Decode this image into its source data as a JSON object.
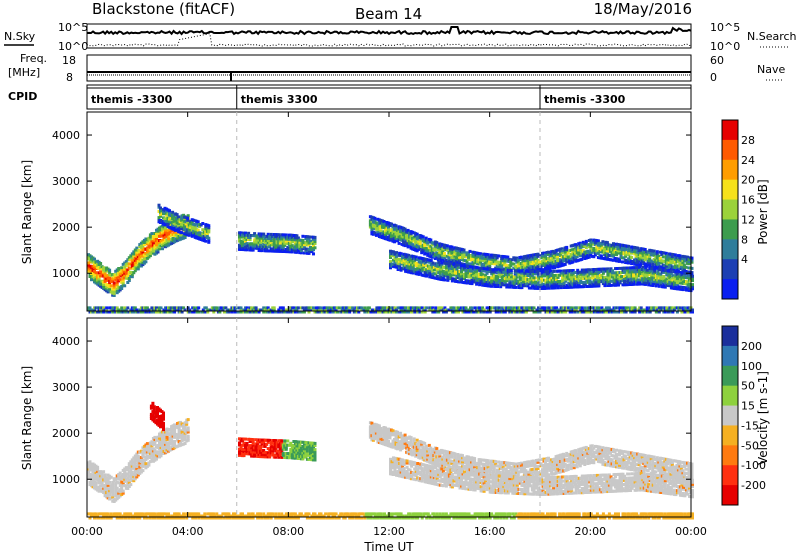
{
  "header": {
    "station": "Blackstone (fitACF)",
    "beam": "Beam 14",
    "date": "18/May/2016"
  },
  "sky_panel": {
    "left_label": "N.Sky",
    "right_label": "N.Search",
    "left_ticks": [
      "10^5",
      "10^0"
    ],
    "right_ticks": [
      "10^5",
      "10^0"
    ]
  },
  "freq_panel": {
    "left_label_line1": "Freq.",
    "left_label_line2": "[MHz]",
    "left_ticks": [
      "18",
      "8"
    ],
    "right_label": "Nave",
    "right_ticks": [
      "60",
      "0"
    ]
  },
  "cpid_panel": {
    "label": "CPID",
    "segments": [
      {
        "name": "themis -3300",
        "start_hour": 0.0
      },
      {
        "name": "themis 3300",
        "start_hour": 5.95
      },
      {
        "name": "themis -3300",
        "start_hour": 18.0
      }
    ]
  },
  "time_axis": {
    "xlabel": "Time UT",
    "tick_labels": [
      "00:00",
      "04:00",
      "08:00",
      "12:00",
      "16:00",
      "20:00",
      "00:00"
    ],
    "tick_hours": [
      0,
      4,
      8,
      12,
      16,
      20,
      24
    ],
    "range_hours": [
      0,
      24
    ]
  },
  "chart_data": [
    {
      "type": "heatmap",
      "name": "power",
      "ylabel": "Slant Range [km]",
      "ylim": [
        180,
        4500
      ],
      "yticks": [
        1000,
        2000,
        3000,
        4000
      ],
      "xlim_hours": [
        0,
        24
      ],
      "colorbar": {
        "label": "Power [dB]",
        "tick_labels": [
          "28",
          "24",
          "20",
          "16",
          "12",
          "8",
          "4"
        ],
        "colors": [
          "#e60000",
          "#ff5a00",
          "#ff9d00",
          "#f6e11b",
          "#9bd23a",
          "#3c9c4e",
          "#2f7d9b",
          "#1c3fb3",
          "#0a1ff0"
        ]
      },
      "echo_bands": [
        {
          "t": [
            0.0,
            0.5,
            1.0,
            1.5,
            2.0,
            2.5,
            3.0,
            3.5,
            4.0
          ],
          "range_km": [
            1200,
            1000,
            800,
            1050,
            1400,
            1650,
            1850,
            2000,
            2100
          ],
          "level": "high"
        },
        {
          "t": [
            2.8,
            3.5,
            4.3,
            4.8
          ],
          "range_km": [
            2350,
            2150,
            2000,
            1900
          ],
          "level": "medium"
        },
        {
          "t": [
            6.0,
            7.0,
            8.0,
            9.0
          ],
          "range_km": [
            1750,
            1720,
            1700,
            1650
          ],
          "level": "medium"
        },
        {
          "t": [
            11.2,
            12.5,
            14.0,
            15.5,
            17.0,
            18.5,
            20.0,
            21.5,
            23.0,
            24.0
          ],
          "range_km": [
            2100,
            1850,
            1500,
            1300,
            1200,
            1350,
            1600,
            1450,
            1300,
            1200
          ],
          "level": "medium"
        },
        {
          "t": [
            12.0,
            14.0,
            16.0,
            18.0,
            20.0,
            22.0,
            24.0
          ],
          "range_km": [
            1350,
            1100,
            950,
            900,
            950,
            1000,
            850
          ],
          "level": "low"
        },
        {
          "t": [
            0.0,
            6.0,
            12.0,
            18.0,
            24.0
          ],
          "range_km": [
            250,
            250,
            250,
            250,
            250
          ],
          "level": "low"
        }
      ]
    },
    {
      "type": "heatmap",
      "name": "velocity",
      "ylabel": "Slant Range [km]",
      "ylim": [
        180,
        4500
      ],
      "yticks": [
        1000,
        2000,
        3000,
        4000
      ],
      "xlim_hours": [
        0,
        24
      ],
      "colorbar": {
        "label": "Velocity [m s-1]",
        "tick_labels": [
          "200",
          "100",
          "50",
          "15",
          "-15",
          "-50",
          "-100",
          "-200"
        ],
        "colors": [
          "#1b2f9c",
          "#2f78b4",
          "#3a9a58",
          "#8ed13e",
          "#c8c8c8",
          "#f5b022",
          "#ff7a10",
          "#ff3010",
          "#e60000"
        ]
      },
      "echo_bands": [
        {
          "t": [
            0.0,
            0.5,
            1.0,
            1.5,
            2.0,
            2.5,
            3.0,
            3.5,
            4.0
          ],
          "range_km": [
            1200,
            1000,
            800,
            1050,
            1400,
            1650,
            1850,
            2000,
            2100
          ],
          "velocity": "near-zero"
        },
        {
          "t": [
            2.5,
            2.8,
            3.0
          ],
          "range_km": [
            2550,
            2400,
            2300
          ],
          "velocity": "-200"
        },
        {
          "t": [
            6.0,
            7.0,
            8.0,
            9.0
          ],
          "range_km": [
            1750,
            1720,
            1700,
            1650
          ],
          "velocity": "-200 to 50"
        },
        {
          "t": [
            11.2,
            12.5,
            14.0,
            15.5,
            17.0,
            18.5,
            20.0,
            21.5,
            23.0,
            24.0
          ],
          "range_km": [
            2100,
            1850,
            1500,
            1300,
            1200,
            1350,
            1600,
            1450,
            1300,
            1200
          ],
          "velocity": "near-zero"
        },
        {
          "t": [
            12.0,
            14.0,
            16.0,
            18.0,
            20.0,
            22.0,
            24.0
          ],
          "range_km": [
            1350,
            1100,
            950,
            900,
            950,
            1000,
            850
          ],
          "velocity": "near-zero"
        },
        {
          "t": [
            0.0,
            6.0,
            12.0,
            18.0,
            24.0
          ],
          "range_km": [
            250,
            250,
            250,
            250,
            250
          ],
          "velocity": "-50 to 15"
        }
      ]
    }
  ]
}
